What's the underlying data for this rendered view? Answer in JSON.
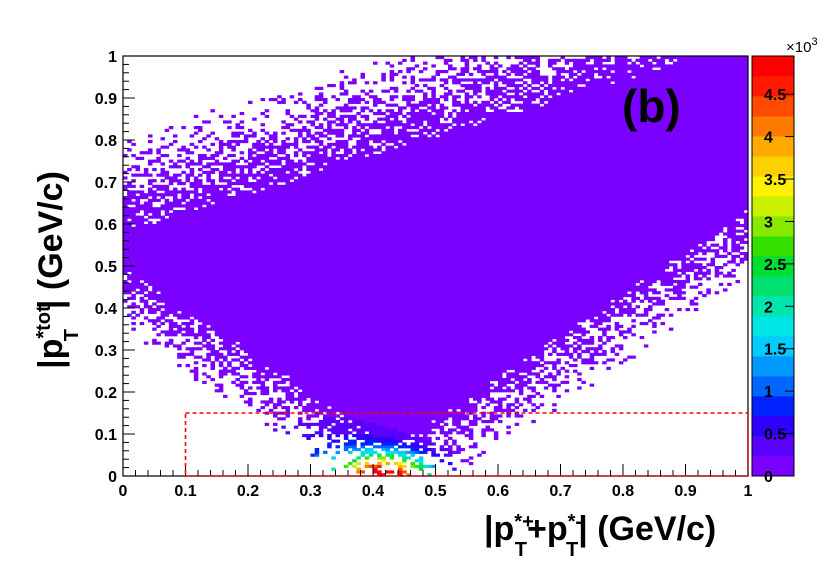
{
  "chart_data": {
    "type": "heatmap",
    "panel_label": "(b)",
    "xlabel_parts": {
      "open": "|p",
      "sup1": "*+",
      "sub1": "T",
      "plus": "+p",
      "sup2": "*-",
      "sub2": "T",
      "close": "| (GeV/c)"
    },
    "ylabel_parts": {
      "open": "|p",
      "sup": "*tot",
      "sub": "T",
      "close": "| (GeV/c)"
    },
    "xlim": [
      0,
      1
    ],
    "ylim": [
      0,
      1
    ],
    "x_ticks": [
      "0",
      "0.1",
      "0.2",
      "0.3",
      "0.4",
      "0.5",
      "0.6",
      "0.7",
      "0.8",
      "0.9",
      "1"
    ],
    "y_ticks": [
      "0",
      "0.1",
      "0.2",
      "0.3",
      "0.4",
      "0.5",
      "0.6",
      "0.7",
      "0.8",
      "0.9",
      "1"
    ],
    "colorbar": {
      "range": [
        0,
        4950
      ],
      "multiplier": "×10",
      "exponent": "3",
      "tick_labels": [
        "0",
        "0.5",
        "1",
        "1.5",
        "2",
        "2.5",
        "3",
        "3.5",
        "4",
        "4.5"
      ],
      "tick_values": [
        0,
        500,
        1000,
        1500,
        2000,
        2500,
        3000,
        3500,
        4000,
        4500
      ],
      "colors": [
        "#7a00ff",
        "#5a00ff",
        "#2f00ff",
        "#0022ff",
        "#0066ff",
        "#0099ff",
        "#00ccff",
        "#00e5e5",
        "#00e5b0",
        "#00e070",
        "#00dd33",
        "#33e000",
        "#88e800",
        "#c8f000",
        "#fff000",
        "#ffd000",
        "#ffaa00",
        "#ff7a00",
        "#ff4a00",
        "#ff1a00",
        "#ff0000"
      ]
    },
    "hot_spot": {
      "x": 0.42,
      "y": 0.015,
      "peak": 4900
    },
    "cut_region": {
      "x_min": 0.1,
      "x_max": 1.0,
      "y_min": 0.0,
      "y_max": 0.15,
      "color": "#ff0000"
    }
  }
}
